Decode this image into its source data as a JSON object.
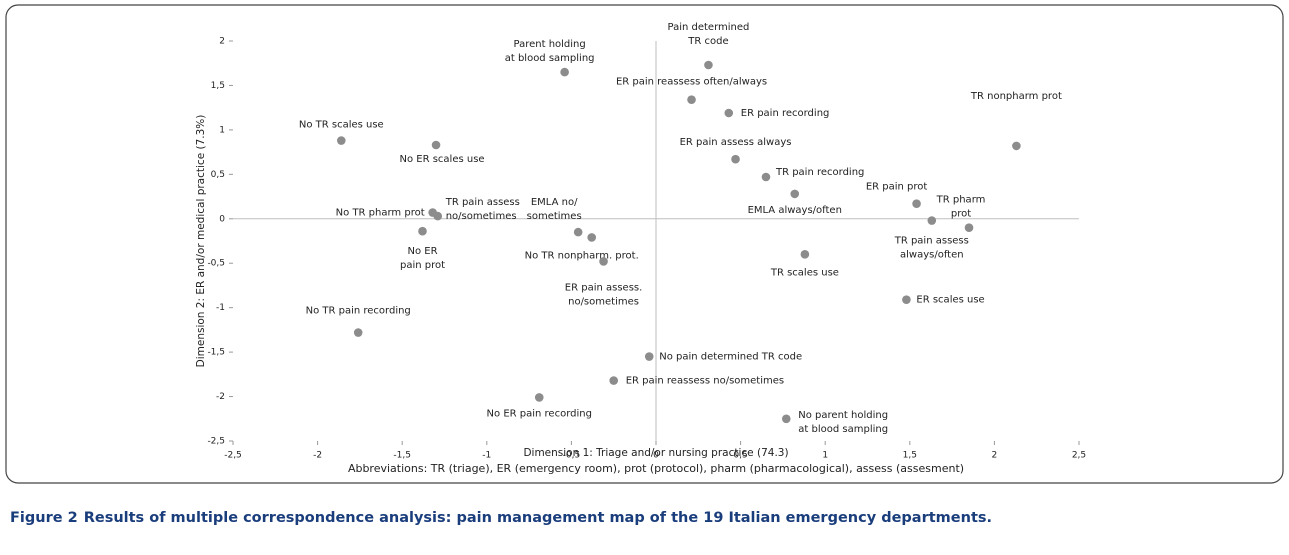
{
  "chart_data": {
    "type": "scatter",
    "xlabel": "Dimension 1: Triage and/or nursing practice (74.3)",
    "ylabel": "Dimension 2: ER and/or medical practice (7.3%)",
    "note": "Abbreviations: TR (triage), ER (emergency room), prot (protocol), pharm (pharmacological), assess (assesment)",
    "caption_label": "Figure 2",
    "caption": "Results of multiple correspondence analysis: pain management map of the 19 Italian emergency departments.",
    "color": "#8c8c8c",
    "xlim": [
      -2.5,
      2.5
    ],
    "ylim": [
      -2.5,
      2
    ],
    "xticks": [
      {
        "value": -2.5,
        "label": "-2,5"
      },
      -2,
      {
        "value": -1.5,
        "label": "-1,5"
      },
      -1,
      {
        "value": -0.5,
        "label": "-0,5"
      },
      0,
      {
        "value": 0.5,
        "label": "0,5"
      },
      1,
      {
        "value": 1.5,
        "label": "1,5"
      },
      2,
      {
        "value": 2.5,
        "label": "2,5"
      }
    ],
    "yticks": [
      {
        "value": -2.5,
        "label": "-2,5"
      },
      -2,
      {
        "value": -1.5,
        "label": "-1,5"
      },
      -1,
      {
        "value": -0.5,
        "label": "-0,5"
      },
      0,
      {
        "value": 0.5,
        "label": "0,5"
      },
      1,
      {
        "value": 1.5,
        "label": "1,5"
      },
      2
    ],
    "points": [
      {
        "label": [
          "Parent holding",
          "at blood sampling"
        ],
        "x": -0.54,
        "y": 1.65
      },
      {
        "label": [
          "Pain determined",
          "TR code"
        ],
        "x": 0.31,
        "y": 1.73
      },
      {
        "label": [
          "ER pain reassess often/always"
        ],
        "x": 0.21,
        "y": 1.34
      },
      {
        "label": [
          "ER pain recording"
        ],
        "x": 0.43,
        "y": 1.19
      },
      {
        "label": [
          "TR nonpharm prot"
        ],
        "x": 2.13,
        "y": 0.82
      },
      {
        "label": [
          "No TR scales use"
        ],
        "x": -1.86,
        "y": 0.88
      },
      {
        "label": [
          "No ER scales use"
        ],
        "x": -1.3,
        "y": 0.83
      },
      {
        "label": [
          "ER pain assess always"
        ],
        "x": 0.47,
        "y": 0.67
      },
      {
        "label": [
          "TR pain recording"
        ],
        "x": 0.65,
        "y": 0.47
      },
      {
        "label": [
          "EMLA always/often"
        ],
        "x": 0.82,
        "y": 0.28
      },
      {
        "label": [
          "ER pain prot"
        ],
        "x": 1.54,
        "y": 0.17
      },
      {
        "label": [
          "TR pain assess",
          "always/often"
        ],
        "x": 1.63,
        "y": -0.02
      },
      {
        "label": [
          "TR pharm",
          "prot"
        ],
        "x": 1.85,
        "y": -0.1
      },
      {
        "label": [
          "No TR pharm prot"
        ],
        "x": -1.32,
        "y": 0.07
      },
      {
        "label": [
          "TR pain assess",
          "no/sometimes"
        ],
        "x": -1.29,
        "y": 0.03
      },
      {
        "label": [
          "No ER",
          "pain prot"
        ],
        "x": -1.38,
        "y": -0.14
      },
      {
        "label": [
          "EMLA no/",
          "sometimes"
        ],
        "x": -0.46,
        "y": -0.15
      },
      {
        "label": [
          "No TR nonpharm. prot."
        ],
        "x": -0.38,
        "y": -0.21
      },
      {
        "label": [
          "ER pain assess.",
          "no/sometimes"
        ],
        "x": -0.31,
        "y": -0.48
      },
      {
        "label": [
          "TR scales use"
        ],
        "x": 0.88,
        "y": -0.4
      },
      {
        "label": [
          "ER scales use"
        ],
        "x": 1.48,
        "y": -0.91
      },
      {
        "label": [
          "No TR pain recording"
        ],
        "x": -1.76,
        "y": -1.28
      },
      {
        "label": [
          "No pain determined TR code"
        ],
        "x": -0.04,
        "y": -1.55
      },
      {
        "label": [
          "ER pain reassess no/sometimes"
        ],
        "x": -0.25,
        "y": -1.82
      },
      {
        "label": [
          "No ER pain recording"
        ],
        "x": -0.69,
        "y": -2.01
      },
      {
        "label": [
          "No parent holding",
          "at blood sampling"
        ],
        "x": 0.77,
        "y": -2.25
      }
    ]
  }
}
